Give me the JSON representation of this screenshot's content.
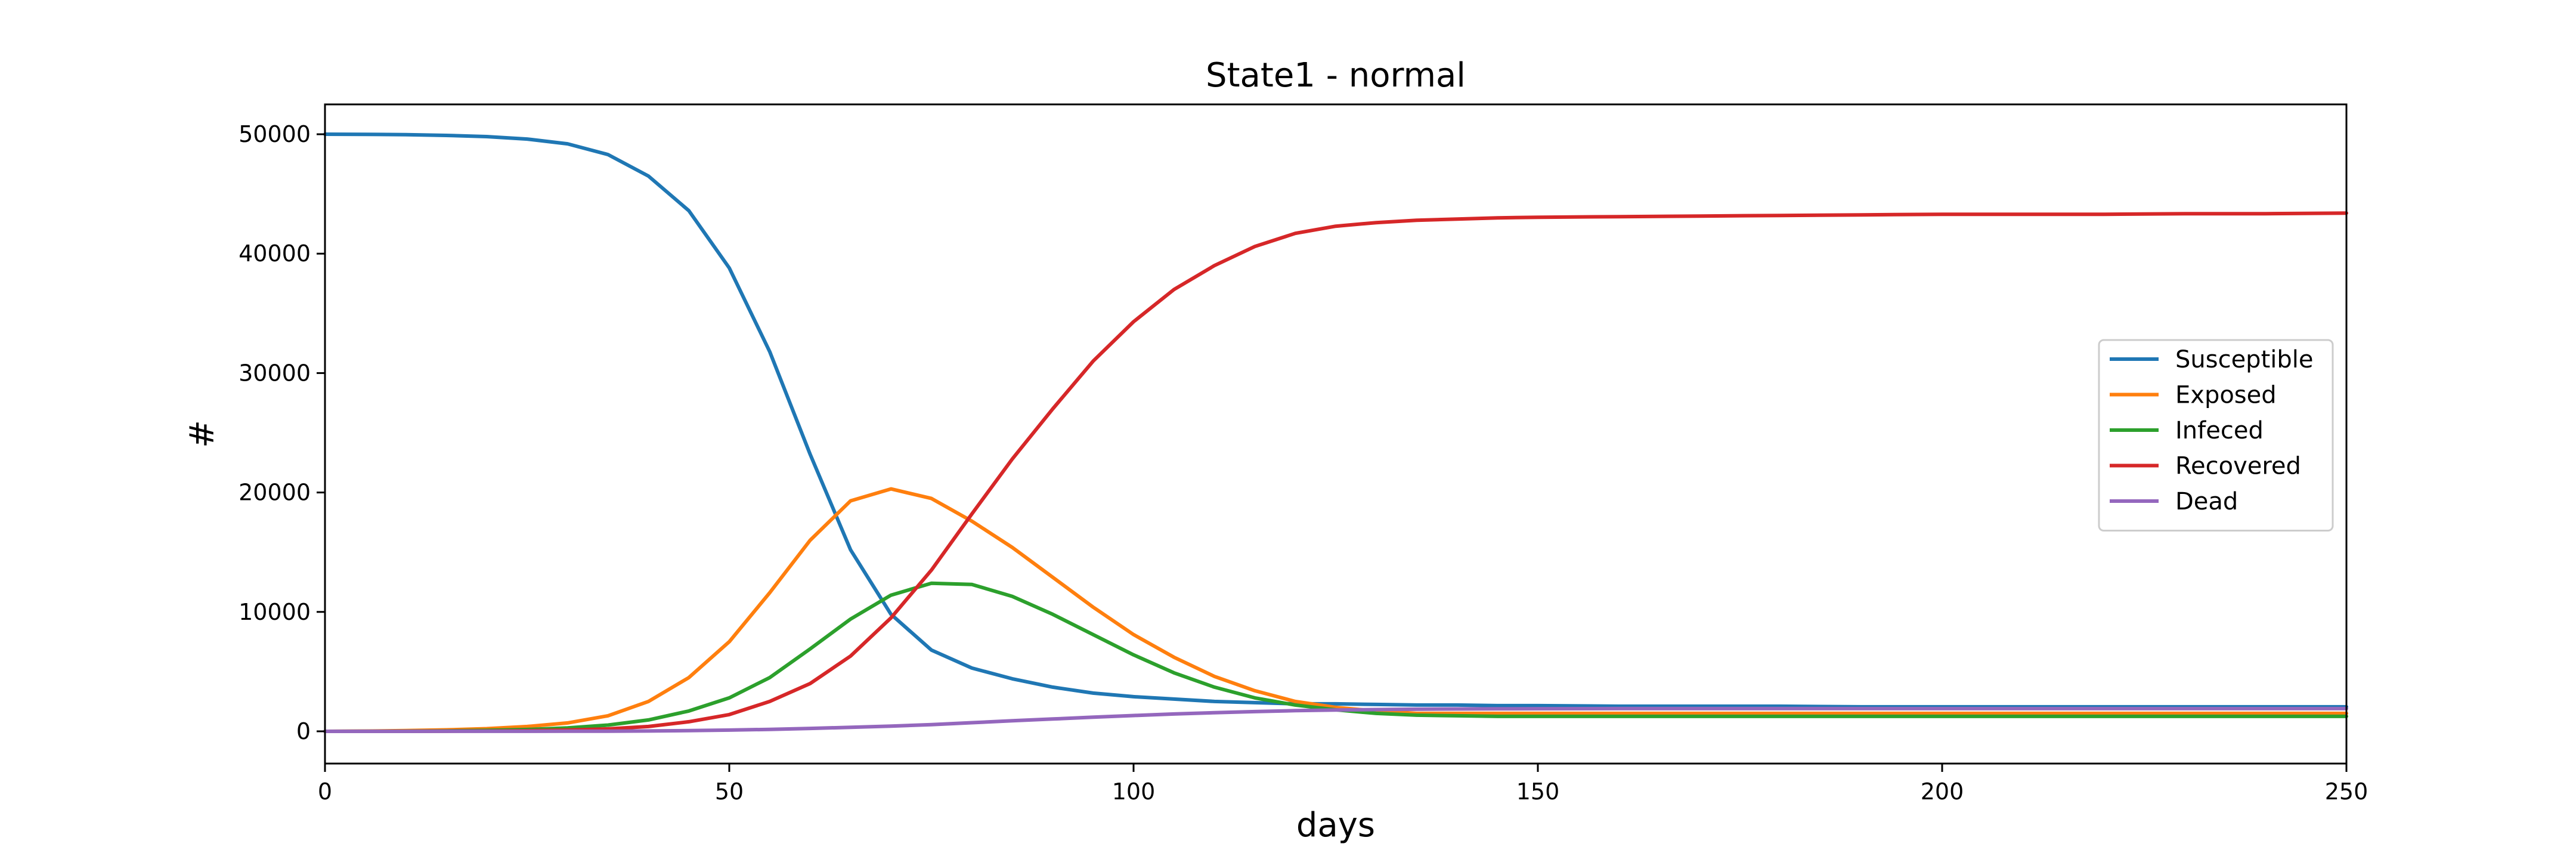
{
  "chart_data": {
    "type": "line",
    "title": "State1 - normal",
    "xlabel": "days",
    "ylabel": "#",
    "xlim": [
      0,
      250
    ],
    "ylim": [
      -2700,
      52500
    ],
    "xticks": [
      0,
      50,
      100,
      150,
      200,
      250
    ],
    "yticks": [
      0,
      10000,
      20000,
      30000,
      40000,
      50000
    ],
    "grid": false,
    "legend_position": "center-right",
    "x": [
      0,
      5,
      10,
      15,
      20,
      25,
      30,
      35,
      40,
      45,
      50,
      55,
      60,
      65,
      70,
      75,
      80,
      85,
      90,
      95,
      100,
      105,
      110,
      115,
      120,
      125,
      130,
      135,
      140,
      145,
      150,
      160,
      170,
      180,
      190,
      200,
      210,
      220,
      230,
      240,
      250
    ],
    "series": [
      {
        "name": "Susceptible",
        "color": "#1f77b4",
        "values": [
          50000,
          49990,
          49960,
          49900,
          49800,
          49600,
          49200,
          48300,
          46500,
          43600,
          38800,
          31800,
          23200,
          15200,
          9800,
          6800,
          5300,
          4400,
          3700,
          3200,
          2900,
          2700,
          2500,
          2400,
          2300,
          2300,
          2250,
          2200,
          2200,
          2150,
          2150,
          2100,
          2100,
          2100,
          2050,
          2050,
          2050,
          2050,
          2050,
          2050,
          2050
        ]
      },
      {
        "name": "Exposed",
        "color": "#ff7f0e",
        "values": [
          0,
          20,
          60,
          120,
          220,
          400,
          700,
          1300,
          2500,
          4500,
          7500,
          11600,
          16000,
          19300,
          20300,
          19500,
          17600,
          15400,
          12900,
          10400,
          8100,
          6200,
          4600,
          3400,
          2500,
          2000,
          1700,
          1500,
          1500,
          1500,
          1500,
          1500,
          1500,
          1500,
          1500,
          1500,
          1500,
          1500,
          1500,
          1500,
          1500
        ]
      },
      {
        "name": "Infeced",
        "color": "#2ca02c",
        "values": [
          0,
          5,
          15,
          40,
          80,
          150,
          280,
          520,
          950,
          1700,
          2800,
          4500,
          6900,
          9400,
          11400,
          12400,
          12300,
          11300,
          9800,
          8100,
          6400,
          4900,
          3700,
          2800,
          2200,
          1800,
          1500,
          1350,
          1300,
          1250,
          1250,
          1250,
          1250,
          1250,
          1250,
          1250,
          1250,
          1250,
          1250,
          1250,
          1250
        ]
      },
      {
        "name": "Recovered",
        "color": "#d62728",
        "values": [
          0,
          2,
          5,
          12,
          25,
          50,
          100,
          200,
          400,
          800,
          1400,
          2500,
          4000,
          6300,
          9500,
          13500,
          18200,
          22800,
          27000,
          31000,
          34300,
          37000,
          39000,
          40600,
          41700,
          42300,
          42600,
          42800,
          42900,
          43000,
          43050,
          43100,
          43150,
          43200,
          43250,
          43300,
          43300,
          43300,
          43350,
          43350,
          43400
        ]
      },
      {
        "name": "Dead",
        "color": "#9467bd",
        "values": [
          0,
          0,
          0,
          1,
          2,
          4,
          8,
          15,
          30,
          60,
          100,
          160,
          240,
          330,
          430,
          560,
          720,
          880,
          1030,
          1180,
          1320,
          1450,
          1560,
          1650,
          1730,
          1780,
          1820,
          1850,
          1870,
          1880,
          1890,
          1900,
          1900,
          1900,
          1900,
          1900,
          1900,
          1900,
          1900,
          1900,
          1900
        ]
      }
    ]
  }
}
